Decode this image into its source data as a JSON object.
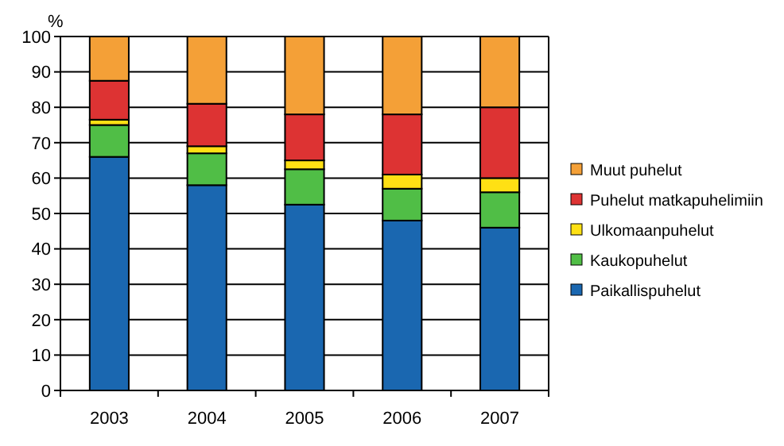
{
  "chart_data": {
    "type": "bar",
    "stacked": true,
    "ylabel": "%",
    "categories": [
      "2003",
      "2004",
      "2005",
      "2006",
      "2007"
    ],
    "series": [
      {
        "name": "Paikallispuhelut",
        "color": "#1a67b0",
        "values": [
          66,
          58,
          52.5,
          48,
          46
        ]
      },
      {
        "name": "Kaukopuhelut",
        "color": "#50be46",
        "values": [
          9,
          9,
          10,
          9,
          10
        ]
      },
      {
        "name": "Ulkomaanpuhelut",
        "color": "#ffe014",
        "values": [
          1.5,
          2,
          2.5,
          4,
          4
        ]
      },
      {
        "name": "Puhelut matkapuhelimiin",
        "color": "#dd3333",
        "values": [
          11,
          12,
          13,
          17,
          20
        ]
      },
      {
        "name": "Muut puhelut",
        "color": "#f4a037",
        "values": [
          12.5,
          19,
          22,
          22,
          20
        ]
      }
    ],
    "ylim": [
      0,
      100
    ],
    "yticks": [
      0,
      10,
      20,
      30,
      40,
      50,
      60,
      70,
      80,
      90,
      100
    ],
    "grid": "y",
    "legend": "right"
  }
}
